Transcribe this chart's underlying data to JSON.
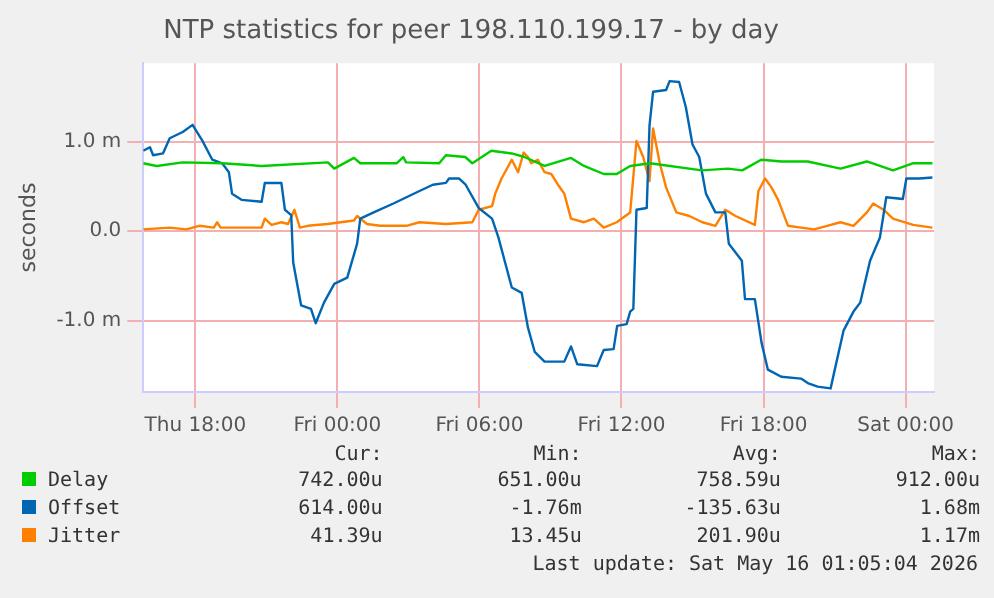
{
  "chart_data": {
    "type": "line",
    "title": "NTP statistics for peer 198.110.199.17 - by day",
    "ylabel": "seconds",
    "xlim": [
      "2026-05-14T15:48",
      "2026-05-16T01:12"
    ],
    "xticks": [
      {
        "value": "2026-05-14T18:00",
        "label": "Thu 18:00"
      },
      {
        "value": "2026-05-15T00:00",
        "label": "Fri 00:00"
      },
      {
        "value": "2026-05-15T06:00",
        "label": "Fri 06:00"
      },
      {
        "value": "2026-05-15T12:00",
        "label": "Fri 12:00"
      },
      {
        "value": "2026-05-15T18:00",
        "label": "Fri 18:00"
      },
      {
        "value": "2026-05-16T00:00",
        "label": "Sat 00:00"
      }
    ],
    "ylim": [
      -1.8,
      1.88
    ],
    "yticks": [
      {
        "value": -1,
        "label": "-1.0 m"
      },
      {
        "value": 0,
        "label": "0.0"
      },
      {
        "value": 1,
        "label": "1.0 m"
      }
    ],
    "grid": true,
    "legend": "bottom",
    "marker": "none",
    "line_style": "solid",
    "series": [
      {
        "name": "Delay",
        "color": "#00cc00",
        "x": [
          "2026-05-14T15:48",
          "2026-05-14T16:22",
          "2026-05-14T17:28",
          "2026-05-14T19:08",
          "2026-05-14T20:48",
          "2026-05-14T23:36",
          "2026-05-14T23:52",
          "2026-05-15T00:42",
          "2026-05-15T00:58",
          "2026-05-15T02:30",
          "2026-05-15T02:47",
          "2026-05-15T02:54",
          "2026-05-15T04:18",
          "2026-05-15T04:35",
          "2026-05-15T05:24",
          "2026-05-15T05:42",
          "2026-05-15T06:30",
          "2026-05-15T07:22",
          "2026-05-15T07:54",
          "2026-05-15T08:45",
          "2026-05-15T09:52",
          "2026-05-15T10:25",
          "2026-05-15T11:15",
          "2026-05-15T11:48",
          "2026-05-15T12:22",
          "2026-05-15T13:12",
          "2026-05-15T15:24",
          "2026-05-15T16:30",
          "2026-05-15T17:06",
          "2026-05-15T17:54",
          "2026-05-15T18:45",
          "2026-05-15T19:52",
          "2026-05-15T21:15",
          "2026-05-15T22:22",
          "2026-05-15T23:28",
          "2026-05-16T00:18",
          "2026-05-16T01:08"
        ],
        "values": [
          0.76,
          0.73,
          0.77,
          0.76,
          0.73,
          0.77,
          0.7,
          0.82,
          0.76,
          0.76,
          0.83,
          0.77,
          0.76,
          0.85,
          0.83,
          0.76,
          0.9,
          0.87,
          0.83,
          0.73,
          0.82,
          0.73,
          0.64,
          0.64,
          0.73,
          0.76,
          0.68,
          0.7,
          0.68,
          0.8,
          0.78,
          0.78,
          0.7,
          0.78,
          0.68,
          0.76,
          0.76
        ]
      },
      {
        "name": "Offset",
        "color": "#0066b3",
        "x": [
          "2026-05-14T15:48",
          "2026-05-14T16:05",
          "2026-05-14T16:13",
          "2026-05-14T16:38",
          "2026-05-14T16:55",
          "2026-05-14T17:28",
          "2026-05-14T17:53",
          "2026-05-14T18:18",
          "2026-05-14T18:43",
          "2026-05-14T19:08",
          "2026-05-14T19:25",
          "2026-05-14T19:33",
          "2026-05-14T19:58",
          "2026-05-14T20:48",
          "2026-05-14T20:56",
          "2026-05-14T21:38",
          "2026-05-14T21:47",
          "2026-05-14T22:03",
          "2026-05-14T22:08",
          "2026-05-14T22:28",
          "2026-05-14T22:53",
          "2026-05-14T23:05",
          "2026-05-14T23:26",
          "2026-05-14T23:52",
          "2026-05-15T00:25",
          "2026-05-15T00:50",
          "2026-05-15T00:58",
          "2026-05-15T01:32",
          "2026-05-15T02:22",
          "2026-05-15T02:55",
          "2026-05-15T03:28",
          "2026-05-15T04:02",
          "2026-05-15T04:35",
          "2026-05-15T04:43",
          "2026-05-15T05:08",
          "2026-05-15T05:25",
          "2026-05-15T05:58",
          "2026-05-15T06:32",
          "2026-05-15T06:48",
          "2026-05-15T07:05",
          "2026-05-15T07:22",
          "2026-05-15T07:47",
          "2026-05-15T08:03",
          "2026-05-15T08:20",
          "2026-05-15T08:45",
          "2026-05-15T09:35",
          "2026-05-15T09:52",
          "2026-05-15T10:08",
          "2026-05-15T10:58",
          "2026-05-15T11:15",
          "2026-05-15T11:40",
          "2026-05-15T11:49",
          "2026-05-15T12:13",
          "2026-05-15T12:22",
          "2026-05-15T12:30",
          "2026-05-15T12:38",
          "2026-05-15T13:04",
          "2026-05-15T13:11",
          "2026-05-15T13:20",
          "2026-05-15T13:53",
          "2026-05-15T14:02",
          "2026-05-15T14:26",
          "2026-05-15T14:43",
          "2026-05-15T15:00",
          "2026-05-15T15:17",
          "2026-05-15T15:34",
          "2026-05-15T15:58",
          "2026-05-15T16:23",
          "2026-05-15T16:32",
          "2026-05-15T17:05",
          "2026-05-15T17:13",
          "2026-05-15T17:38",
          "2026-05-15T17:55",
          "2026-05-15T18:11",
          "2026-05-15T18:45",
          "2026-05-15T19:35",
          "2026-05-15T19:52",
          "2026-05-15T20:17",
          "2026-05-15T20:50",
          "2026-05-15T20:58",
          "2026-05-15T21:23",
          "2026-05-15T21:48",
          "2026-05-15T22:05",
          "2026-05-15T22:30",
          "2026-05-15T22:55",
          "2026-05-15T23:11",
          "2026-05-15T23:53",
          "2026-05-16T00:02",
          "2026-05-16T00:35",
          "2026-05-16T01:08"
        ],
        "values": [
          0.9,
          0.94,
          0.85,
          0.87,
          1.04,
          1.11,
          1.19,
          1.01,
          0.8,
          0.76,
          0.66,
          0.42,
          0.35,
          0.33,
          0.54,
          0.54,
          0.24,
          0.18,
          -0.35,
          -0.83,
          -0.87,
          -1.03,
          -0.8,
          -0.59,
          -0.52,
          -0.14,
          0.14,
          0.21,
          0.31,
          0.38,
          0.45,
          0.52,
          0.54,
          0.59,
          0.59,
          0.52,
          0.26,
          0.14,
          -0.07,
          -0.35,
          -0.63,
          -0.69,
          -1.08,
          -1.35,
          -1.46,
          -1.46,
          -1.29,
          -1.49,
          -1.51,
          -1.33,
          -1.32,
          -1.06,
          -1.04,
          -0.9,
          -0.87,
          0.24,
          0.26,
          1.18,
          1.56,
          1.58,
          1.68,
          1.67,
          1.39,
          0.97,
          0.83,
          0.42,
          0.21,
          0.21,
          -0.14,
          -0.33,
          -0.76,
          -0.76,
          -1.25,
          -1.55,
          -1.63,
          -1.65,
          -1.7,
          -1.74,
          -1.76,
          -1.6,
          -1.11,
          -0.9,
          -0.8,
          -0.33,
          -0.07,
          0.38,
          0.36,
          0.59,
          0.59,
          0.6
        ]
      },
      {
        "name": "Jitter",
        "color": "#ff8000",
        "x": [
          "2026-05-14T15:48",
          "2026-05-14T16:55",
          "2026-05-14T17:37",
          "2026-05-14T18:10",
          "2026-05-14T18:47",
          "2026-05-14T18:55",
          "2026-05-14T19:04",
          "2026-05-14T20:48",
          "2026-05-14T20:56",
          "2026-05-14T21:13",
          "2026-05-14T21:38",
          "2026-05-14T21:55",
          "2026-05-14T22:11",
          "2026-05-14T22:25",
          "2026-05-14T22:45",
          "2026-05-14T23:35",
          "2026-05-15T00:42",
          "2026-05-15T00:50",
          "2026-05-15T01:15",
          "2026-05-15T01:48",
          "2026-05-15T02:55",
          "2026-05-15T03:28",
          "2026-05-15T04:35",
          "2026-05-15T05:42",
          "2026-05-15T05:58",
          "2026-05-15T06:32",
          "2026-05-15T06:40",
          "2026-05-15T06:56",
          "2026-05-15T07:22",
          "2026-05-15T07:38",
          "2026-05-15T07:52",
          "2026-05-15T08:03",
          "2026-05-15T08:11",
          "2026-05-15T08:28",
          "2026-05-15T08:45",
          "2026-05-15T09:02",
          "2026-05-15T09:19",
          "2026-05-15T09:35",
          "2026-05-15T09:52",
          "2026-05-15T10:25",
          "2026-05-15T10:50",
          "2026-05-15T11:15",
          "2026-05-15T11:48",
          "2026-05-15T12:22",
          "2026-05-15T12:38",
          "2026-05-15T12:55",
          "2026-05-15T13:11",
          "2026-05-15T13:20",
          "2026-05-15T13:37",
          "2026-05-15T13:53",
          "2026-05-15T14:19",
          "2026-05-15T14:52",
          "2026-05-15T15:25",
          "2026-05-15T15:58",
          "2026-05-15T16:23",
          "2026-05-15T16:49",
          "2026-05-15T17:38",
          "2026-05-15T17:47",
          "2026-05-15T18:04",
          "2026-05-15T18:20",
          "2026-05-15T18:37",
          "2026-05-15T19:02",
          "2026-05-15T19:35",
          "2026-05-15T20:08",
          "2026-05-15T20:41",
          "2026-05-15T21:15",
          "2026-05-15T21:48",
          "2026-05-15T22:22",
          "2026-05-15T22:38",
          "2026-05-15T23:04",
          "2026-05-15T23:28",
          "2026-05-16T00:19",
          "2026-05-16T01:08"
        ],
        "values": [
          0.02,
          0.04,
          0.02,
          0.06,
          0.04,
          0.1,
          0.04,
          0.04,
          0.14,
          0.07,
          0.1,
          0.08,
          0.24,
          0.04,
          0.06,
          0.08,
          0.12,
          0.17,
          0.08,
          0.06,
          0.06,
          0.1,
          0.08,
          0.1,
          0.24,
          0.28,
          0.42,
          0.59,
          0.8,
          0.66,
          0.88,
          0.83,
          0.76,
          0.8,
          0.66,
          0.64,
          0.52,
          0.42,
          0.14,
          0.1,
          0.14,
          0.04,
          0.1,
          0.21,
          1.01,
          0.83,
          0.56,
          1.15,
          0.76,
          0.49,
          0.21,
          0.17,
          0.1,
          0.06,
          0.24,
          0.17,
          0.07,
          0.45,
          0.59,
          0.49,
          0.35,
          0.06,
          0.04,
          0.02,
          0.06,
          0.1,
          0.06,
          0.21,
          0.31,
          0.24,
          0.14,
          0.07,
          0.04
        ]
      }
    ],
    "annotations": [
      "Cur:",
      "Min:",
      "Avg:",
      "Max:",
      "742.00u",
      "651.00u",
      "758.59u",
      "912.00u",
      "614.00u",
      "-1.76m",
      "-135.63u",
      "1.68m",
      "41.39u",
      "13.45u",
      "201.90u",
      "1.17m",
      "Last update: Sat May 16 01:05:04 2026"
    ]
  }
}
